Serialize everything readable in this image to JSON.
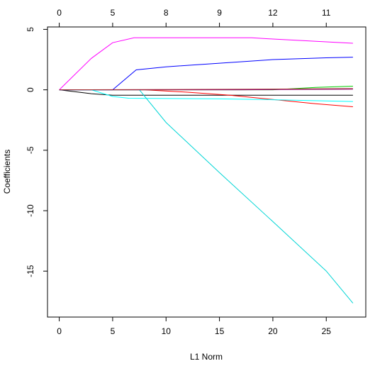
{
  "chart_data": {
    "type": "line",
    "title": "",
    "xlabel": "L1 Norm",
    "ylabel": "Coefficients",
    "xlim": [
      -1.1,
      28.7
    ],
    "ylim": [
      -18.8,
      5.2
    ],
    "grid": false,
    "legend": "none",
    "x_ticks": [
      0,
      5,
      10,
      15,
      20,
      25
    ],
    "y_ticks": [
      5,
      0,
      -5,
      -10,
      -15
    ],
    "top_axis": {
      "positions": [
        0,
        5,
        10,
        15,
        20,
        25
      ],
      "labels": [
        "0",
        "5",
        "8",
        "9",
        "12",
        "11"
      ]
    },
    "series": [
      {
        "color": "#000000",
        "x": [
          0,
          3,
          5,
          10,
          15,
          20,
          27.5
        ],
        "y": [
          0,
          -0.32,
          -0.45,
          -0.45,
          -0.45,
          -0.45,
          -0.45
        ]
      },
      {
        "color": "#FF0000",
        "x": [
          0,
          8,
          12,
          16,
          20,
          24,
          27.5
        ],
        "y": [
          0,
          0,
          -0.2,
          -0.45,
          -0.8,
          -1.15,
          -1.4
        ]
      },
      {
        "color": "#00CD00",
        "x": [
          0,
          20,
          24,
          27.5
        ],
        "y": [
          0,
          0,
          0.2,
          0.3
        ]
      },
      {
        "color": "#0000FF",
        "x": [
          0,
          5,
          7.2,
          10,
          15,
          20,
          25,
          27.5
        ],
        "y": [
          0,
          0,
          1.65,
          1.9,
          2.2,
          2.5,
          2.65,
          2.7
        ]
      },
      {
        "color": "#00FFFF",
        "x": [
          0,
          3,
          5,
          6.5,
          10,
          15,
          20,
          27.5
        ],
        "y": [
          0,
          0,
          -0.55,
          -0.7,
          -0.72,
          -0.75,
          -0.82,
          -0.97
        ]
      },
      {
        "color": "#FF00FF",
        "x": [
          0,
          3,
          5,
          7,
          10,
          15,
          18,
          20,
          27.5
        ],
        "y": [
          0,
          2.6,
          3.9,
          4.3,
          4.3,
          4.3,
          4.3,
          4.2,
          3.85
        ]
      },
      {
        "color": "#00D5D5",
        "x": [
          0,
          7.5,
          10,
          15,
          20,
          25,
          27.5
        ],
        "y": [
          0,
          0,
          -2.7,
          -6.85,
          -10.9,
          -15.0,
          -17.65
        ]
      },
      {
        "color": "#8B008B",
        "x": [
          0,
          17,
          20,
          27.5
        ],
        "y": [
          0,
          0,
          0.02,
          0.05
        ]
      },
      {
        "color": "#A52A2A",
        "x": [
          0,
          18,
          27.5
        ],
        "y": [
          0,
          0.05,
          0.1
        ]
      }
    ]
  }
}
